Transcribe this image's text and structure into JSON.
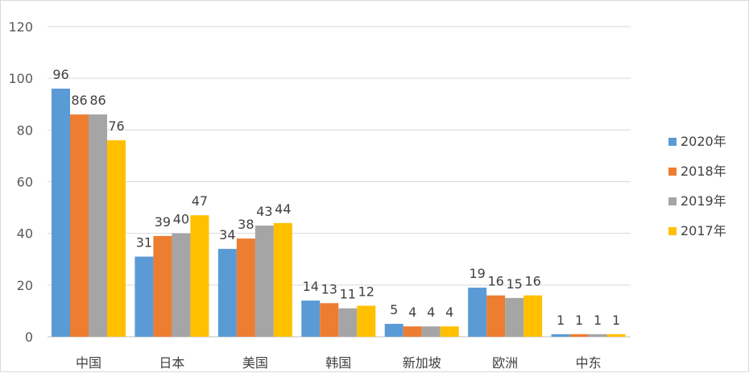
{
  "chart_data": {
    "type": "bar",
    "categories": [
      "中国",
      "日本",
      "美国",
      "韩国",
      "新加坡",
      "欧洲",
      "中东"
    ],
    "series": [
      {
        "name": "2020年",
        "color": "#5b9bd5",
        "values": [
          96,
          31,
          34,
          14,
          5,
          19,
          1
        ]
      },
      {
        "name": "2018年",
        "color": "#ed7d31",
        "values": [
          86,
          39,
          38,
          13,
          4,
          16,
          1
        ]
      },
      {
        "name": "2019年",
        "color": "#a5a5a5",
        "values": [
          86,
          40,
          43,
          11,
          4,
          15,
          1
        ]
      },
      {
        "name": "2017年",
        "color": "#ffc000",
        "values": [
          76,
          47,
          44,
          12,
          4,
          16,
          1
        ]
      }
    ],
    "yticks": [
      "0",
      "20",
      "40",
      "60",
      "80",
      "100",
      "120"
    ],
    "ylim": [
      0,
      120
    ],
    "grid": true,
    "legend_position": "right"
  }
}
